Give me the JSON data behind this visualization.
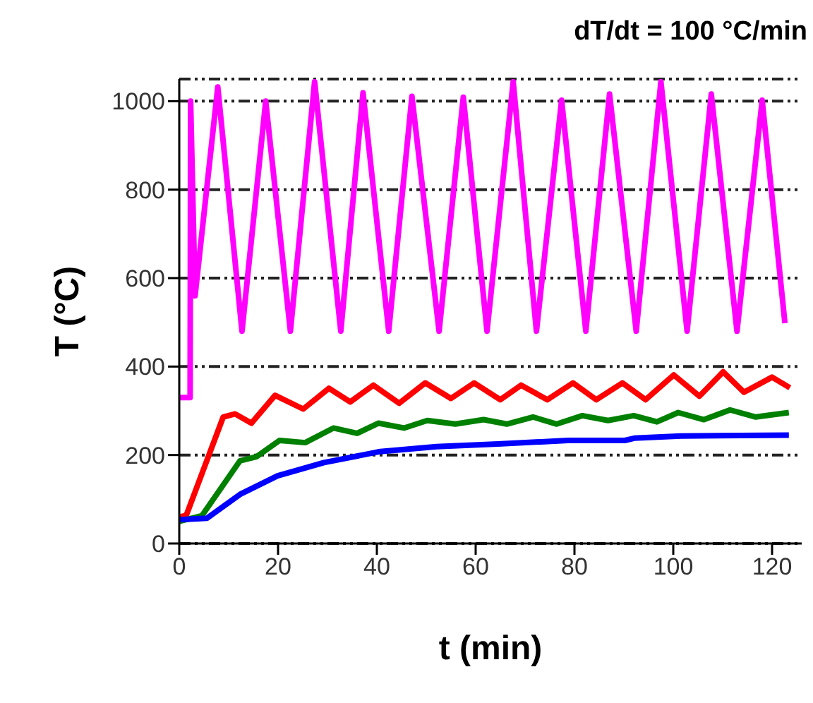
{
  "chart_data": {
    "type": "line",
    "title": "dT/dt = 100 °C/min",
    "xlabel": "t (min)",
    "ylabel": "T (°C)",
    "xlim": [
      0,
      126
    ],
    "xticks": [
      0,
      20,
      40,
      60,
      80,
      100,
      120
    ],
    "ylim": [
      0,
      1050
    ],
    "yticks": [
      0,
      200,
      400,
      600,
      800,
      1000
    ],
    "grid": "y",
    "marker": "none",
    "line_style": "solid",
    "series": [
      {
        "color": "#ff00ff",
        "x": [
          0,
          1.5,
          2.2,
          2.3,
          3.2,
          7.8,
          12.7,
          17.5,
          22.5,
          27.4,
          32.7,
          37.2,
          42.4,
          47.1,
          52.6,
          57.5,
          62.3,
          67.6,
          72.3,
          77.4,
          82.3,
          87.1,
          92.5,
          97.5,
          102.8,
          107.7,
          112.9,
          118,
          122.6
        ],
        "values": [
          330,
          330,
          330,
          1000,
          560,
          1032,
          480,
          1000,
          480,
          1044,
          480,
          1019,
          480,
          1011,
          480,
          1009,
          480,
          1044,
          480,
          1002,
          480,
          1016,
          480,
          1044,
          480,
          1016,
          480,
          1002,
          498
        ]
      },
      {
        "color": "#ff0000",
        "x": [
          0,
          1.4,
          8.9,
          11.3,
          14.6,
          19.4,
          25.1,
          30.3,
          34.6,
          39.3,
          44.5,
          49.8,
          55,
          59.7,
          65,
          69.2,
          74.5,
          79.7,
          84.4,
          89.7,
          94.4,
          100.1,
          105.3,
          110.1,
          114.3,
          120,
          123.6
        ],
        "values": [
          60,
          63,
          286,
          293,
          272,
          335,
          304,
          351,
          320,
          358,
          317,
          363,
          328,
          363,
          325,
          358,
          325,
          363,
          325,
          363,
          325,
          381,
          333,
          388,
          342,
          376,
          352
        ]
      },
      {
        "color": "#008000",
        "x": [
          0,
          4.6,
          12.3,
          15.6,
          20.3,
          25.5,
          31.2,
          36,
          40.3,
          45.5,
          50.2,
          55.9,
          61.6,
          66.3,
          71.6,
          76.4,
          81.6,
          86.8,
          92,
          96.7,
          101,
          106.2,
          111.5,
          116.7,
          123.4
        ],
        "values": [
          50,
          63,
          187,
          196,
          233,
          228,
          261,
          249,
          272,
          261,
          278,
          270,
          280,
          270,
          286,
          270,
          289,
          278,
          289,
          275,
          296,
          280,
          302,
          286,
          296
        ]
      },
      {
        "color": "#0000ff",
        "x": [
          0,
          5.6,
          12.3,
          19.9,
          29.3,
          40.7,
          52.1,
          64.5,
          78.7,
          90.2,
          92.1,
          101.5,
          123.4
        ],
        "values": [
          54,
          57,
          111,
          153,
          183,
          208,
          219,
          225,
          233,
          233,
          238,
          243,
          245
        ]
      }
    ]
  }
}
